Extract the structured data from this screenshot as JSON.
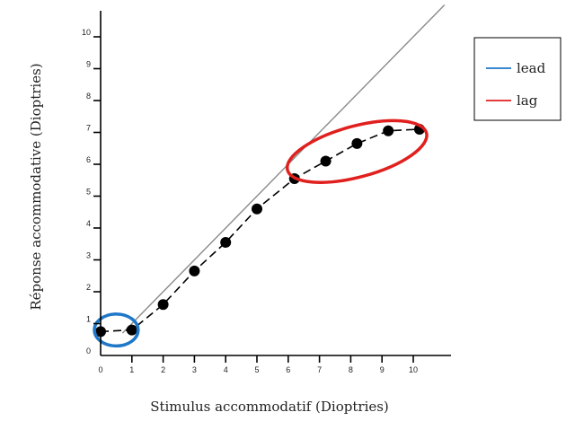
{
  "chart_data": {
    "type": "scatter",
    "title": "",
    "xlabel": "Stimulus accommodatif (Dioptries)",
    "ylabel": "Réponse accommodative (Dioptries)",
    "xlim": [
      0,
      11
    ],
    "ylim": [
      0,
      10.5
    ],
    "xticks": [
      "0",
      "1",
      "2",
      "3",
      "4",
      "5",
      "6",
      "7",
      "8",
      "9",
      "10"
    ],
    "yticks": [
      "0",
      "1",
      "2",
      "3",
      "4",
      "5",
      "6",
      "7",
      "8",
      "9",
      "10"
    ],
    "grid": false,
    "series": [
      {
        "type": "line+markers",
        "line_style": "dashed",
        "color": "#000000",
        "x": [
          0,
          1,
          2,
          3,
          4,
          5,
          6.2,
          7.2,
          8.2,
          9.2,
          10.2
        ],
        "y": [
          0.75,
          0.8,
          1.6,
          2.65,
          3.55,
          4.6,
          5.55,
          6.1,
          6.65,
          7.05,
          7.1
        ]
      },
      {
        "type": "reference-line",
        "color": "#8a8a8a",
        "x": [
          0.7,
          11
        ],
        "y": [
          0.7,
          11
        ]
      }
    ],
    "annotations": [
      {
        "shape": "ellipse",
        "color": "#1f77c8",
        "label": "lead",
        "cx": 0.5,
        "cy": 0.8,
        "rx": 0.7,
        "ry": 0.5
      },
      {
        "shape": "ellipse",
        "color": "#e0201e",
        "label": "lag",
        "cx": 8.2,
        "cy": 6.4,
        "rx": 2.3,
        "ry": 0.8,
        "angle": 15
      }
    ],
    "legend": {
      "position": "right",
      "entries": [
        {
          "label": "lead",
          "color": "#1f77c8"
        },
        {
          "label": "lag",
          "color": "#e0201e"
        }
      ]
    }
  }
}
